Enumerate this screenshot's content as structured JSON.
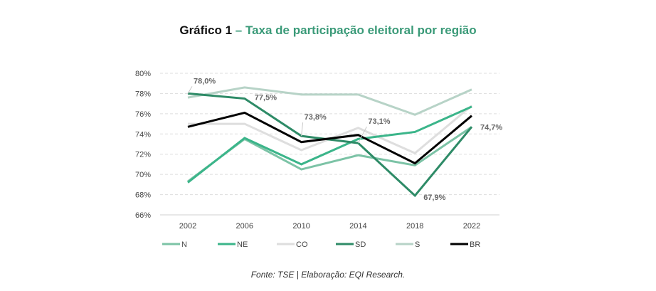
{
  "title": {
    "prefix": "Gráfico 1",
    "text": "– Taxa de participação eleitoral por região"
  },
  "footer": "Fonte: TSE | Elaboração: EQI Research.",
  "chart_data": {
    "type": "line",
    "title": "Gráfico 1 – Taxa de participação eleitoral por região",
    "xlabel": "",
    "ylabel": "",
    "x": [
      "2002",
      "2006",
      "2010",
      "2014",
      "2018",
      "2022"
    ],
    "ylim": [
      66,
      80
    ],
    "yticks": [
      66,
      68,
      70,
      72,
      74,
      76,
      78,
      80
    ],
    "ytick_labels": [
      "66%",
      "68%",
      "70%",
      "72%",
      "74%",
      "76%",
      "78%",
      "80%"
    ],
    "grid": "horizontal-dashed",
    "legend_position": "bottom",
    "series": [
      {
        "name": "N",
        "color": "#7cc3a6",
        "values": [
          69.3,
          73.5,
          70.5,
          71.9,
          70.9,
          74.7
        ]
      },
      {
        "name": "NE",
        "color": "#3bb58a",
        "values": [
          69.2,
          73.6,
          71.0,
          73.5,
          74.2,
          76.7
        ]
      },
      {
        "name": "CO",
        "color": "#dedede",
        "values": [
          75.0,
          75.0,
          72.4,
          74.6,
          72.1,
          76.8
        ]
      },
      {
        "name": "SD",
        "color": "#2e8b67",
        "values": [
          78.0,
          77.5,
          73.8,
          73.1,
          67.9,
          74.7
        ]
      },
      {
        "name": "S",
        "color": "#b7d3c7",
        "values": [
          77.6,
          78.6,
          77.9,
          77.9,
          75.9,
          78.4
        ]
      },
      {
        "name": "BR",
        "color": "#000000",
        "values": [
          74.7,
          76.1,
          73.2,
          73.9,
          71.1,
          75.8
        ]
      }
    ],
    "annotations": [
      {
        "text": "78,0%",
        "series": "SD",
        "x": "2002",
        "value": 78.0
      },
      {
        "text": "77,5%",
        "series": "SD",
        "x": "2006",
        "value": 77.5
      },
      {
        "text": "73,8%",
        "series": "SD",
        "x": "2010",
        "value": 73.8
      },
      {
        "text": "73,1%",
        "series": "SD",
        "x": "2014",
        "value": 73.1
      },
      {
        "text": "67,9%",
        "series": "SD",
        "x": "2018",
        "value": 67.9
      },
      {
        "text": "74,7%",
        "series": "SD",
        "x": "2022",
        "value": 74.7
      }
    ]
  }
}
